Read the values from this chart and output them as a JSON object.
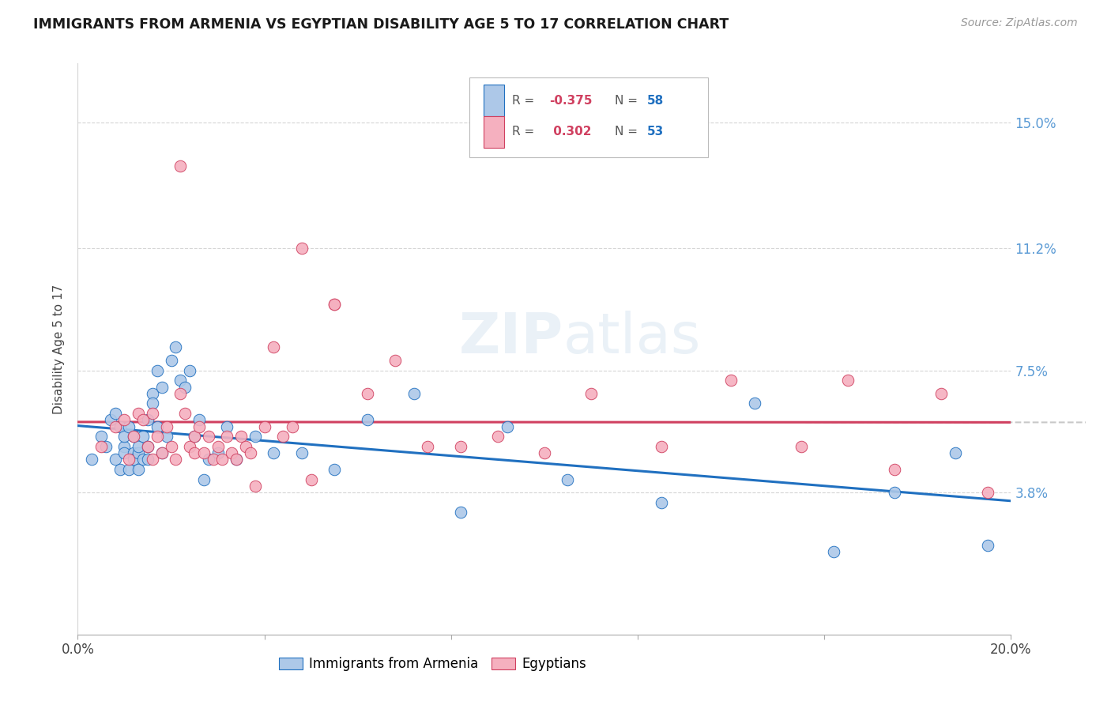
{
  "title": "IMMIGRANTS FROM ARMENIA VS EGYPTIAN DISABILITY AGE 5 TO 17 CORRELATION CHART",
  "source": "Source: ZipAtlas.com",
  "ylabel": "Disability Age 5 to 17",
  "y_tick_labels": [
    "3.8%",
    "7.5%",
    "11.2%",
    "15.0%"
  ],
  "y_tick_values": [
    0.038,
    0.075,
    0.112,
    0.15
  ],
  "x_range": [
    0.0,
    0.2
  ],
  "y_range": [
    -0.005,
    0.168
  ],
  "color_armenia": "#adc8e8",
  "color_egypt": "#f5b0bf",
  "color_line_armenia": "#2070c0",
  "color_line_egypt": "#d04060",
  "color_line_ext": "#c8c8c8",
  "watermark_zip": "ZIP",
  "watermark_atlas": "atlas",
  "armenia_x": [
    0.003,
    0.005,
    0.006,
    0.007,
    0.008,
    0.008,
    0.009,
    0.009,
    0.01,
    0.01,
    0.01,
    0.011,
    0.011,
    0.012,
    0.012,
    0.012,
    0.013,
    0.013,
    0.013,
    0.014,
    0.014,
    0.015,
    0.015,
    0.015,
    0.016,
    0.016,
    0.017,
    0.017,
    0.018,
    0.018,
    0.019,
    0.02,
    0.021,
    0.022,
    0.023,
    0.024,
    0.025,
    0.026,
    0.027,
    0.028,
    0.03,
    0.032,
    0.034,
    0.038,
    0.042,
    0.048,
    0.055,
    0.062,
    0.072,
    0.082,
    0.092,
    0.105,
    0.125,
    0.145,
    0.162,
    0.175,
    0.188,
    0.195
  ],
  "armenia_y": [
    0.048,
    0.055,
    0.052,
    0.06,
    0.048,
    0.062,
    0.045,
    0.058,
    0.052,
    0.05,
    0.055,
    0.045,
    0.058,
    0.05,
    0.048,
    0.055,
    0.05,
    0.052,
    0.045,
    0.055,
    0.048,
    0.052,
    0.048,
    0.06,
    0.068,
    0.065,
    0.075,
    0.058,
    0.07,
    0.05,
    0.055,
    0.078,
    0.082,
    0.072,
    0.07,
    0.075,
    0.055,
    0.06,
    0.042,
    0.048,
    0.05,
    0.058,
    0.048,
    0.055,
    0.05,
    0.05,
    0.045,
    0.06,
    0.068,
    0.032,
    0.058,
    0.042,
    0.035,
    0.065,
    0.02,
    0.038,
    0.05,
    0.022
  ],
  "egypt_x": [
    0.005,
    0.008,
    0.01,
    0.011,
    0.012,
    0.013,
    0.014,
    0.015,
    0.016,
    0.016,
    0.017,
    0.018,
    0.019,
    0.02,
    0.021,
    0.022,
    0.023,
    0.024,
    0.025,
    0.025,
    0.026,
    0.027,
    0.028,
    0.029,
    0.03,
    0.031,
    0.032,
    0.033,
    0.034,
    0.035,
    0.036,
    0.037,
    0.038,
    0.04,
    0.042,
    0.044,
    0.046,
    0.05,
    0.055,
    0.062,
    0.068,
    0.075,
    0.082,
    0.09,
    0.1,
    0.11,
    0.125,
    0.14,
    0.155,
    0.165,
    0.175,
    0.185,
    0.195
  ],
  "egypt_y": [
    0.052,
    0.058,
    0.06,
    0.048,
    0.055,
    0.062,
    0.06,
    0.052,
    0.048,
    0.062,
    0.055,
    0.05,
    0.058,
    0.052,
    0.048,
    0.068,
    0.062,
    0.052,
    0.055,
    0.05,
    0.058,
    0.05,
    0.055,
    0.048,
    0.052,
    0.048,
    0.055,
    0.05,
    0.048,
    0.055,
    0.052,
    0.05,
    0.04,
    0.058,
    0.082,
    0.055,
    0.058,
    0.042,
    0.095,
    0.068,
    0.078,
    0.052,
    0.052,
    0.055,
    0.05,
    0.068,
    0.052,
    0.072,
    0.052,
    0.072,
    0.045,
    0.068,
    0.038
  ],
  "egypt_outlier_x": [
    0.022
  ],
  "egypt_outlier_y": [
    0.137
  ],
  "egypt_high_x": [
    0.048
  ],
  "egypt_high_y": [
    0.112
  ],
  "egypt_med_x": [
    0.055
  ],
  "egypt_med_y": [
    0.095
  ]
}
